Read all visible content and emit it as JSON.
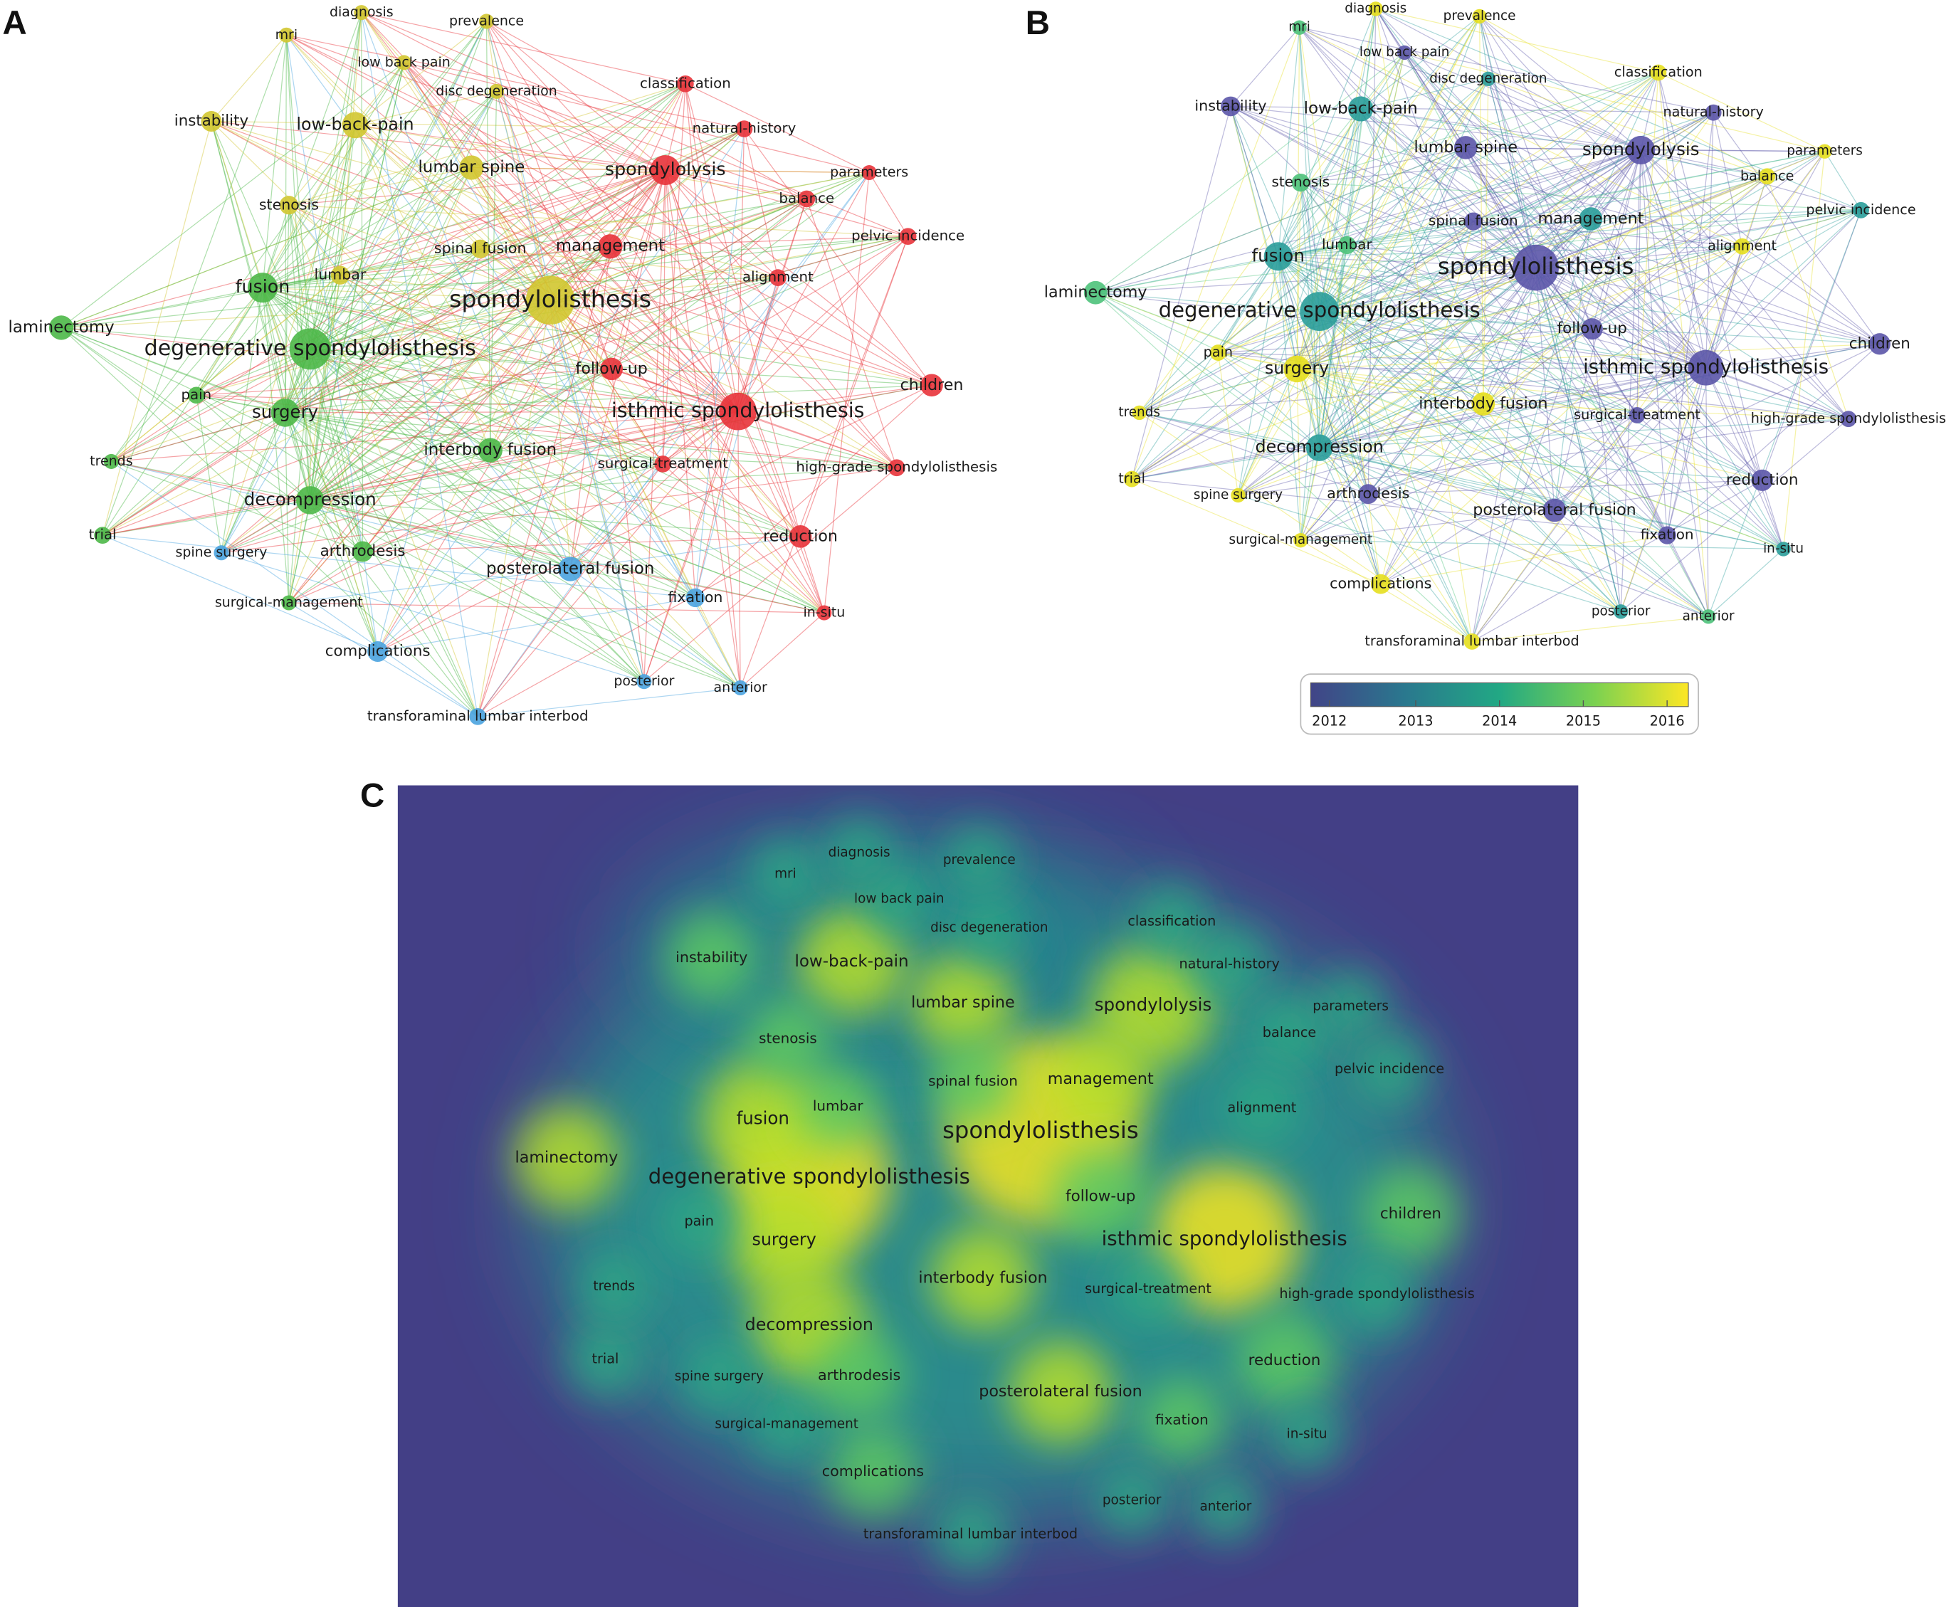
{
  "panels": [
    "A",
    "B",
    "C"
  ],
  "keywords": [
    "spondylolisthesis",
    "degenerative spondylolisthesis",
    "isthmic spondylolisthesis",
    "spondylolysis",
    "fusion",
    "surgery",
    "decompression",
    "management",
    "low-back-pain",
    "lumbar spine",
    "instability",
    "laminectomy",
    "interbody fusion",
    "posterolateral fusion",
    "children",
    "reduction",
    "follow-up",
    "classification",
    "natural-history",
    "parameters",
    "balance",
    "pelvic incidence",
    "alignment",
    "surgical-treatment",
    "high-grade spondylolisthesis",
    "in-situ",
    "fixation",
    "anterior",
    "posterior",
    "transforaminal lumbar interbod",
    "complications",
    "surgical-management",
    "spine surgery",
    "arthrodesis",
    "trial",
    "trends",
    "pain",
    "lumbar",
    "spinal fusion",
    "stenosis",
    "disc degeneration",
    "low back pain",
    "mri",
    "diagnosis",
    "prevalence"
  ],
  "colorbar": {
    "ticks": [
      2012,
      2013,
      2014,
      2015,
      2016
    ]
  }
}
